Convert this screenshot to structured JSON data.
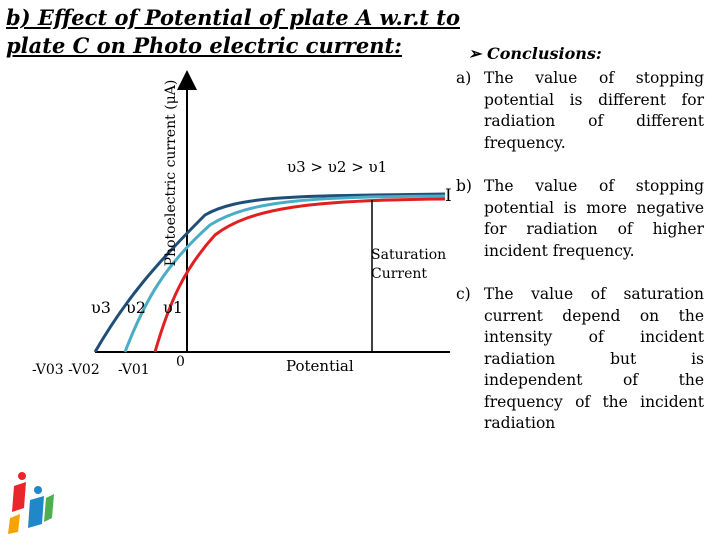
{
  "title": "b) Effect of Potential of plate A w.r.t to plate C on Photo electric current:",
  "diagram": {
    "y_axis_label": "Photoelectric current (μA)",
    "frequency_order": "υ3 > υ2 > υ1",
    "curve_labels": [
      "υ3",
      "υ2",
      "υ1"
    ],
    "x_labels": {
      "v03_v02": "-V03 -V02",
      "v01": "-V01",
      "zero": "0",
      "potential": "Potential"
    },
    "saturation_current": "I",
    "saturation_label": "Saturation\nCurrent",
    "colors": {
      "v3": "#1f4e79",
      "v2": "#4bacc6",
      "v1": "#e02020",
      "axis": "#000000"
    }
  },
  "conclusions": {
    "heading": "Conclusions:",
    "items": [
      {
        "letter": "a)",
        "text": "The value of stopping potential is different for radiation of different frequency."
      },
      {
        "letter": "b)",
        "text": "The value of stopping potential is more negative for radiation of higher incident frequency."
      },
      {
        "letter": "c)",
        "text": "The value of saturation current depend on the intensity of incident radiation but is independent of the frequency of the incident radiation"
      }
    ]
  }
}
